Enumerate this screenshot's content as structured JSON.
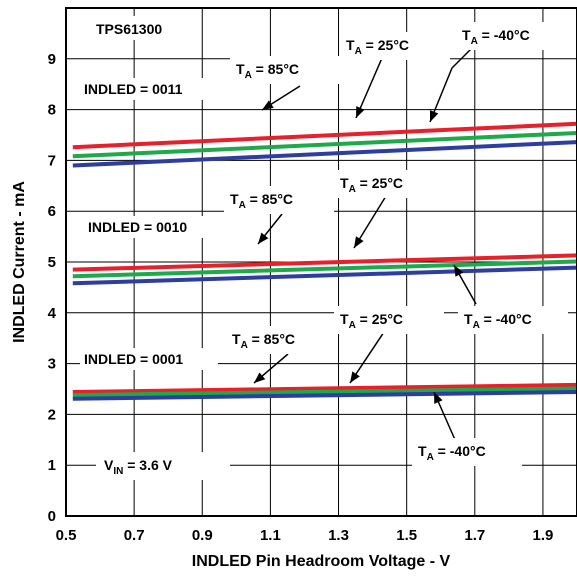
{
  "chart_data": {
    "type": "line",
    "xlabel": "INDLED Pin Headroom Voltage - V",
    "ylabel": "INDLED Current - mA",
    "xlim": [
      0.5,
      2.0
    ],
    "ylim": [
      0,
      10
    ],
    "x_ticks": [
      "0.5",
      "0.7",
      "0.9",
      "1.1",
      "1.3",
      "1.5",
      "1.7",
      "1.9"
    ],
    "y_ticks": [
      "0",
      "1",
      "2",
      "3",
      "4",
      "5",
      "6",
      "7",
      "8",
      "9"
    ],
    "grid": true,
    "colors": {
      "85": "#e8202a",
      "25": "#1faa4a",
      "-40": "#2d3da0"
    },
    "series": [
      {
        "group": "0011",
        "temp": "85",
        "x": [
          0.52,
          2.0
        ],
        "y": [
          7.26,
          7.72
        ]
      },
      {
        "group": "0011",
        "temp": "25",
        "x": [
          0.52,
          2.0
        ],
        "y": [
          7.08,
          7.54
        ]
      },
      {
        "group": "0011",
        "temp": "-40",
        "x": [
          0.52,
          2.0
        ],
        "y": [
          6.9,
          7.36
        ]
      },
      {
        "group": "0010",
        "temp": "85",
        "x": [
          0.52,
          2.0
        ],
        "y": [
          4.85,
          5.13
        ]
      },
      {
        "group": "0010",
        "temp": "25",
        "x": [
          0.52,
          2.0
        ],
        "y": [
          4.72,
          5.01
        ]
      },
      {
        "group": "0010",
        "temp": "-40",
        "x": [
          0.52,
          2.0
        ],
        "y": [
          4.58,
          4.89
        ]
      },
      {
        "group": "0001",
        "temp": "85",
        "x": [
          0.52,
          2.0
        ],
        "y": [
          2.44,
          2.58
        ]
      },
      {
        "group": "0001",
        "temp": "25",
        "x": [
          0.52,
          2.0
        ],
        "y": [
          2.38,
          2.51
        ]
      },
      {
        "group": "0001",
        "temp": "-40",
        "x": [
          0.52,
          2.0
        ],
        "y": [
          2.31,
          2.44
        ]
      }
    ],
    "annotations": {
      "device": "TPS61300",
      "vin_label": {
        "main": "V",
        "sub": "IN",
        "rest": " = 3.6 V"
      },
      "indled_0011": "INDLED = 0011",
      "indled_0010": "INDLED = 0010",
      "indled_0001": "INDLED = 0001",
      "ta_main": "T",
      "ta_sub": "A",
      "ta_85": " = 85°C",
      "ta_25": " = 25°C",
      "ta_m40": " = -40°C"
    }
  }
}
